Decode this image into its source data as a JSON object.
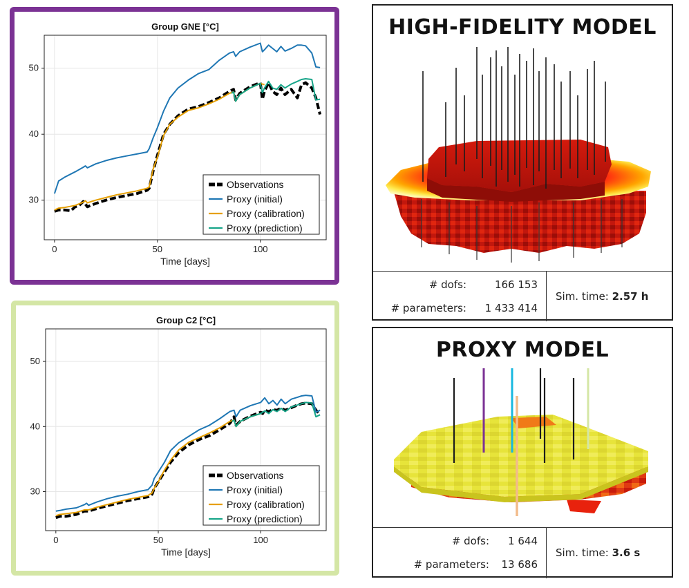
{
  "chart_data": [
    {
      "type": "line",
      "title": "Group GNE [°C]",
      "xlabel": "Time [days]",
      "ylabel": "",
      "xlim": [
        -5,
        132
      ],
      "ylim": [
        24,
        55
      ],
      "xticks": [
        0,
        50,
        100
      ],
      "yticks": [
        30,
        40,
        50
      ],
      "grid": true,
      "legend_position": "bottom-right",
      "series": [
        {
          "name": "Observations",
          "color": "#000000",
          "dash": true,
          "x": [
            0,
            2,
            5,
            8,
            10,
            12,
            14,
            16,
            20,
            25,
            30,
            35,
            40,
            45,
            46,
            48,
            50,
            53,
            56,
            60,
            65,
            70,
            75,
            80,
            85,
            87,
            88,
            90,
            95,
            100,
            101,
            102,
            104,
            106,
            108,
            110,
            112,
            115,
            118,
            120,
            122,
            125,
            127,
            129
          ],
          "y": [
            28.3,
            28.5,
            28.5,
            28.4,
            29.0,
            29.2,
            29.8,
            29.0,
            29.5,
            30.0,
            30.4,
            30.7,
            31.0,
            31.5,
            31.8,
            34.5,
            36.8,
            40.0,
            41.5,
            42.8,
            43.8,
            44.2,
            44.8,
            45.5,
            46.5,
            46.8,
            45.2,
            46.2,
            47.2,
            47.8,
            45.3,
            46.5,
            47.8,
            46.5,
            46.0,
            47.0,
            46.0,
            46.8,
            45.5,
            47.5,
            47.8,
            47.0,
            45.5,
            43.0
          ]
        },
        {
          "name": "Proxy (initial)",
          "color": "#1f77b4",
          "dash": false,
          "x": [
            0,
            2,
            5,
            10,
            14,
            15,
            16,
            20,
            25,
            30,
            35,
            40,
            45,
            46,
            48,
            50,
            53,
            56,
            60,
            65,
            70,
            75,
            80,
            85,
            87,
            88,
            90,
            95,
            100,
            101,
            102,
            104,
            106,
            108,
            110,
            112,
            115,
            118,
            120,
            122,
            125,
            127,
            129
          ],
          "y": [
            31.0,
            32.9,
            33.5,
            34.3,
            35.0,
            35.2,
            34.9,
            35.5,
            36.0,
            36.4,
            36.7,
            37.0,
            37.3,
            37.8,
            39.5,
            41.0,
            43.5,
            45.5,
            47.0,
            48.2,
            49.2,
            49.8,
            51.2,
            52.3,
            52.5,
            51.8,
            52.5,
            53.2,
            53.8,
            52.5,
            52.8,
            53.5,
            53.0,
            52.5,
            53.3,
            52.6,
            53.0,
            53.5,
            53.5,
            53.4,
            52.3,
            50.2,
            50.1
          ]
        },
        {
          "name": "Proxy (calibration)",
          "color": "#e69f00",
          "dash": false,
          "x": [
            0,
            2,
            5,
            10,
            14,
            15,
            16,
            20,
            25,
            30,
            35,
            40,
            45,
            46,
            48,
            50,
            53,
            56,
            60,
            65,
            70,
            75,
            80,
            85,
            87,
            88,
            90,
            95,
            100,
            102
          ],
          "y": [
            28.5,
            28.8,
            28.9,
            29.2,
            29.7,
            29.9,
            29.6,
            30.0,
            30.4,
            30.8,
            31.1,
            31.4,
            31.8,
            32.0,
            34.8,
            36.5,
            39.8,
            41.5,
            42.6,
            43.6,
            44.0,
            44.6,
            45.3,
            46.2,
            46.4,
            45.0,
            46.0,
            47.0,
            47.7,
            47.5
          ]
        },
        {
          "name": "Proxy (prediction)",
          "color": "#17a589",
          "dash": false,
          "x": [
            86,
            87,
            88,
            90,
            95,
            100,
            101,
            102,
            104,
            106,
            108,
            110,
            112,
            115,
            118,
            120,
            122,
            125,
            127,
            129
          ],
          "y": [
            46.2,
            46.4,
            45.0,
            46.0,
            47.0,
            47.7,
            46.3,
            47.0,
            48.0,
            47.0,
            46.8,
            47.5,
            47.0,
            47.6,
            48.0,
            48.3,
            48.4,
            48.3,
            45.2,
            45.3
          ]
        }
      ]
    },
    {
      "type": "line",
      "title": "Group C2 [°C]",
      "xlabel": "Time [days]",
      "ylabel": "",
      "xlim": [
        -5,
        132
      ],
      "ylim": [
        24,
        55
      ],
      "xticks": [
        0,
        50,
        100
      ],
      "yticks": [
        30,
        40,
        50
      ],
      "grid": true,
      "legend_position": "bottom-right",
      "series": [
        {
          "name": "Observations",
          "color": "#000000",
          "dash": true,
          "x": [
            0,
            2,
            5,
            10,
            14,
            16,
            20,
            25,
            30,
            35,
            40,
            45,
            47,
            48,
            50,
            53,
            56,
            60,
            65,
            70,
            75,
            80,
            85,
            87,
            88,
            90,
            95,
            100,
            101,
            102,
            104,
            106,
            108,
            110,
            112,
            115,
            118,
            120,
            122,
            125,
            127,
            129
          ],
          "y": [
            26.0,
            26.2,
            26.2,
            26.5,
            27.0,
            27.0,
            27.4,
            27.8,
            28.2,
            28.6,
            28.9,
            29.2,
            29.6,
            30.5,
            31.5,
            33.0,
            34.5,
            36.0,
            37.2,
            38.0,
            38.6,
            39.5,
            40.5,
            41.5,
            40.2,
            40.8,
            41.6,
            42.2,
            42.0,
            42.5,
            42.3,
            42.6,
            42.5,
            42.8,
            42.5,
            42.9,
            43.3,
            43.5,
            43.6,
            43.5,
            42.5,
            41.8
          ]
        },
        {
          "name": "Proxy (initial)",
          "color": "#1f77b4",
          "dash": false,
          "x": [
            0,
            2,
            5,
            10,
            14,
            15,
            16,
            20,
            25,
            30,
            35,
            40,
            45,
            47,
            48,
            50,
            53,
            56,
            60,
            65,
            70,
            75,
            80,
            85,
            87,
            88,
            90,
            95,
            100,
            102,
            104,
            106,
            108,
            110,
            112,
            115,
            118,
            120,
            122,
            125,
            127,
            129
          ],
          "y": [
            27.0,
            27.1,
            27.3,
            27.5,
            28.0,
            28.2,
            27.9,
            28.4,
            28.9,
            29.3,
            29.6,
            30.0,
            30.3,
            31.0,
            32.0,
            33.0,
            34.5,
            36.3,
            37.5,
            38.5,
            39.5,
            40.2,
            41.2,
            42.3,
            42.5,
            41.5,
            42.5,
            43.2,
            43.7,
            44.4,
            43.5,
            44.0,
            43.3,
            44.2,
            43.5,
            44.2,
            44.5,
            44.7,
            44.8,
            44.7,
            42.2,
            42.5
          ]
        },
        {
          "name": "Proxy (calibration)",
          "color": "#e69f00",
          "dash": false,
          "x": [
            0,
            2,
            5,
            10,
            14,
            16,
            20,
            25,
            30,
            35,
            40,
            45,
            47,
            48,
            50,
            53,
            56,
            60,
            65,
            70,
            75,
            80,
            85,
            87,
            88,
            90,
            95,
            100
          ],
          "y": [
            26.3,
            26.5,
            26.6,
            26.8,
            27.2,
            27.2,
            27.6,
            28.0,
            28.4,
            28.8,
            29.1,
            29.4,
            29.8,
            30.5,
            31.5,
            33.3,
            34.8,
            36.4,
            37.6,
            38.3,
            39.0,
            39.8,
            40.8,
            41.0,
            40.0,
            40.8,
            41.5,
            42.0
          ]
        },
        {
          "name": "Proxy (prediction)",
          "color": "#17a589",
          "dash": false,
          "x": [
            86,
            87,
            88,
            90,
            95,
            100,
            102,
            104,
            106,
            108,
            110,
            112,
            115,
            118,
            120,
            122,
            125,
            127,
            129
          ],
          "y": [
            40.8,
            41.0,
            40.0,
            40.8,
            41.5,
            42.0,
            42.4,
            42.0,
            42.6,
            42.3,
            42.8,
            42.3,
            43.0,
            43.3,
            43.5,
            43.7,
            43.6,
            41.5,
            41.8
          ]
        }
      ]
    }
  ],
  "high_fidelity": {
    "title": "HIGH-FIDELITY MODEL",
    "dofs_label": "# dofs:",
    "dofs_value": "166 153",
    "params_label": "# parameters:",
    "params_value": "1 433 414",
    "sim_label": "Sim. time:",
    "sim_value": "2.57 h"
  },
  "proxy": {
    "title": "PROXY MODEL",
    "dofs_label": "# dofs:",
    "dofs_value": "1 644",
    "params_label": "# parameters:",
    "params_value": "13 686",
    "sim_label": "Sim. time:",
    "sim_value": "3.6 s"
  },
  "colors": {
    "gne_frame": "#7b3294",
    "c2_frame": "#d4e6a5"
  }
}
